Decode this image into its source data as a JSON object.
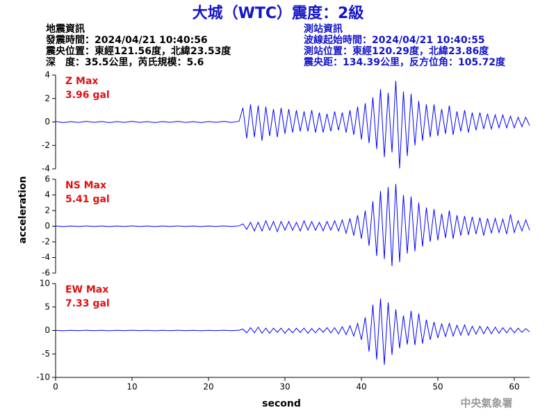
{
  "figure": {
    "title": "大城（WTC）震度：2級",
    "xlabel": "second",
    "ylabel": "acceleration",
    "credit": "中央氣象署"
  },
  "header": {
    "left": [
      "地震資訊",
      "發震時間：2024/04/21 10:40:56",
      "震央位置：東經121.56度，北緯23.53度",
      "深　度：35.5公里，芮氏規模：5.6"
    ],
    "right": [
      "測站資訊",
      "波線起始時間：2024/04/21 10:40:55",
      "測站位置：東經120.29度，北緯23.86度",
      "震央距：134.39公里，反方位角：105.72度"
    ]
  },
  "chart_data": [
    {
      "type": "line",
      "annotation": "Z Max",
      "max_label": "3.96 gal",
      "color": "#0000ff",
      "xlim": [
        0,
        62
      ],
      "ylim": [
        -4,
        4
      ],
      "yticks": [
        -4,
        -2,
        0,
        2,
        4
      ],
      "x": [
        0,
        1,
        2,
        3,
        4,
        5,
        6,
        7,
        8,
        9,
        10,
        11,
        12,
        13,
        14,
        15,
        16,
        17,
        18,
        19,
        20,
        21,
        22,
        23,
        24,
        24.5,
        25,
        25.5,
        26,
        26.5,
        27,
        27.5,
        28,
        28.5,
        29,
        29.5,
        30,
        30.5,
        31,
        31.5,
        32,
        32.5,
        33,
        33.5,
        34,
        34.5,
        35,
        35.5,
        36,
        36.5,
        37,
        37.5,
        38,
        38.5,
        39,
        39.5,
        40,
        40.5,
        41,
        41.5,
        42,
        42.5,
        43,
        43.5,
        44,
        44.5,
        45,
        45.5,
        46,
        46.5,
        47,
        47.5,
        48,
        48.5,
        49,
        49.5,
        50,
        50.5,
        51,
        51.5,
        52,
        52.5,
        53,
        53.5,
        54,
        54.5,
        55,
        55.5,
        56,
        56.5,
        57,
        57.5,
        58,
        58.5,
        59,
        59.5,
        60,
        60.5,
        61,
        61.5,
        62
      ],
      "values": [
        0.04,
        -0.05,
        0.03,
        -0.04,
        0.05,
        -0.03,
        0.04,
        -0.05,
        0.03,
        -0.04,
        0.05,
        -0.04,
        0.03,
        -0.05,
        0.04,
        -0.03,
        0.05,
        -0.04,
        0.03,
        -0.05,
        0.04,
        -0.03,
        0.05,
        -0.04,
        0.06,
        1.2,
        -1.4,
        1.5,
        -1.3,
        1.4,
        -1.6,
        1.3,
        -1.2,
        1.1,
        -1.3,
        1.2,
        -1.0,
        1.1,
        -0.9,
        1.0,
        -0.8,
        0.9,
        -0.8,
        1.0,
        -0.9,
        0.8,
        -0.9,
        0.7,
        -0.8,
        0.9,
        -0.7,
        0.8,
        -0.9,
        1.0,
        -1.1,
        1.3,
        -1.5,
        1.6,
        -1.8,
        2.1,
        -2.3,
        2.8,
        -3.0,
        2.5,
        -2.6,
        3.5,
        -3.96,
        2.6,
        -2.9,
        2.4,
        -2.0,
        1.8,
        -1.6,
        1.5,
        -1.3,
        1.5,
        -1.2,
        1.1,
        -1.0,
        1.4,
        -1.1,
        0.9,
        -0.8,
        1.0,
        -0.9,
        0.8,
        -0.7,
        0.8,
        -0.6,
        0.7,
        -0.6,
        0.6,
        -0.5,
        0.6,
        -0.5,
        0.5,
        -0.5,
        0.4,
        -0.4,
        0.4,
        -0.3
      ]
    },
    {
      "type": "line",
      "annotation": "NS Max",
      "max_label": "5.41 gal",
      "color": "#0000ff",
      "xlim": [
        0,
        62
      ],
      "ylim": [
        -6,
        6
      ],
      "yticks": [
        -6,
        -4,
        -2,
        0,
        2,
        4,
        6
      ],
      "x": [
        0,
        1,
        2,
        3,
        4,
        5,
        6,
        7,
        8,
        9,
        10,
        11,
        12,
        13,
        14,
        15,
        16,
        17,
        18,
        19,
        20,
        21,
        22,
        23,
        24,
        24.5,
        25,
        25.5,
        26,
        26.5,
        27,
        27.5,
        28,
        28.5,
        29,
        29.5,
        30,
        30.5,
        31,
        31.5,
        32,
        32.5,
        33,
        33.5,
        34,
        34.5,
        35,
        35.5,
        36,
        36.5,
        37,
        37.5,
        38,
        38.5,
        39,
        39.5,
        40,
        40.5,
        41,
        41.5,
        42,
        42.5,
        43,
        43.5,
        44,
        44.5,
        45,
        45.5,
        46,
        46.5,
        47,
        47.5,
        48,
        48.5,
        49,
        49.5,
        50,
        50.5,
        51,
        51.5,
        52,
        52.5,
        53,
        53.5,
        54,
        54.5,
        55,
        55.5,
        56,
        56.5,
        57,
        57.5,
        58,
        58.5,
        59,
        59.5,
        60,
        60.5,
        61,
        61.5,
        62
      ],
      "values": [
        0.03,
        -0.04,
        0.03,
        -0.03,
        0.04,
        -0.03,
        0.03,
        -0.04,
        0.03,
        -0.03,
        0.04,
        -0.03,
        0.03,
        -0.04,
        0.03,
        -0.03,
        0.04,
        -0.03,
        0.03,
        -0.04,
        0.03,
        -0.03,
        0.04,
        -0.03,
        0.05,
        0.3,
        -0.4,
        0.5,
        -0.6,
        0.5,
        -0.6,
        0.7,
        -0.5,
        0.6,
        -0.7,
        0.6,
        -0.5,
        0.6,
        -0.5,
        0.5,
        -0.6,
        0.7,
        -0.5,
        0.6,
        -0.5,
        0.5,
        -0.6,
        0.6,
        -0.5,
        0.7,
        -0.6,
        0.8,
        -0.9,
        1.0,
        -1.2,
        1.4,
        -1.6,
        2.0,
        -2.5,
        3.2,
        -3.8,
        4.5,
        -4.2,
        5.0,
        -5.1,
        5.41,
        -4.6,
        4.0,
        -3.5,
        3.8,
        -3.2,
        3.0,
        -2.6,
        2.4,
        -2.0,
        2.2,
        -1.8,
        1.6,
        -1.5,
        2.0,
        -1.6,
        1.4,
        -1.2,
        1.3,
        -1.1,
        1.2,
        -1.0,
        1.1,
        -1.2,
        1.0,
        -0.9,
        1.0,
        -0.8,
        0.9,
        -1.0,
        1.5,
        -0.8,
        0.7,
        -0.6,
        0.8,
        -0.5
      ]
    },
    {
      "type": "line",
      "annotation": "EW Max",
      "max_label": "7.33 gal",
      "color": "#0000ff",
      "xlim": [
        0,
        62
      ],
      "ylim": [
        -10,
        10
      ],
      "yticks": [
        -10,
        -5,
        0,
        5,
        10
      ],
      "xticks": [
        0,
        10,
        20,
        30,
        40,
        50,
        60
      ],
      "x": [
        0,
        1,
        2,
        3,
        4,
        5,
        6,
        7,
        8,
        9,
        10,
        11,
        12,
        13,
        14,
        15,
        16,
        17,
        18,
        19,
        20,
        21,
        22,
        23,
        24,
        24.5,
        25,
        25.5,
        26,
        26.5,
        27,
        27.5,
        28,
        28.5,
        29,
        29.5,
        30,
        30.5,
        31,
        31.5,
        32,
        32.5,
        33,
        33.5,
        34,
        34.5,
        35,
        35.5,
        36,
        36.5,
        37,
        37.5,
        38,
        38.5,
        39,
        39.5,
        40,
        40.5,
        41,
        41.5,
        42,
        42.5,
        43,
        43.5,
        44,
        44.5,
        45,
        45.5,
        46,
        46.5,
        47,
        47.5,
        48,
        48.5,
        49,
        49.5,
        50,
        50.5,
        51,
        51.5,
        52,
        52.5,
        53,
        53.5,
        54,
        54.5,
        55,
        55.5,
        56,
        56.5,
        57,
        57.5,
        58,
        58.5,
        59,
        59.5,
        60,
        60.5,
        61,
        61.5,
        62
      ],
      "values": [
        0.04,
        -0.05,
        0.04,
        -0.04,
        0.05,
        -0.04,
        0.04,
        -0.05,
        0.04,
        -0.04,
        0.05,
        -0.04,
        0.04,
        -0.05,
        0.04,
        -0.04,
        0.05,
        -0.04,
        0.04,
        -0.05,
        0.04,
        -0.04,
        0.05,
        -0.04,
        0.06,
        0.3,
        -0.5,
        0.6,
        -0.5,
        0.7,
        -0.6,
        0.5,
        -0.6,
        0.5,
        -0.4,
        0.5,
        -0.6,
        0.4,
        -0.5,
        0.5,
        -0.4,
        0.5,
        -0.6,
        0.4,
        -0.5,
        0.5,
        -0.4,
        0.6,
        -0.5,
        0.6,
        -0.7,
        0.8,
        -0.9,
        1.0,
        -1.2,
        1.5,
        -2.0,
        2.8,
        -4.5,
        5.5,
        -6.2,
        6.8,
        -7.33,
        6.0,
        -5.2,
        4.5,
        -3.8,
        3.2,
        -3.0,
        4.2,
        -3.1,
        3.6,
        -2.8,
        2.3,
        -2.0,
        1.8,
        -1.6,
        1.4,
        -1.3,
        1.5,
        -1.2,
        1.1,
        -1.0,
        1.2,
        -1.0,
        0.9,
        -0.8,
        0.9,
        -0.7,
        0.8,
        -0.7,
        0.7,
        -0.6,
        0.6,
        -0.5,
        0.6,
        -0.5,
        0.5,
        -0.4,
        0.4,
        -0.3
      ]
    }
  ]
}
